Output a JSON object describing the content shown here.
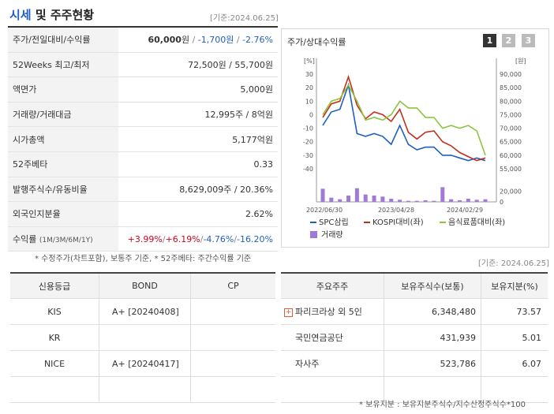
{
  "header": {
    "title_accent": "시세",
    "title_rest": " 및 주주현황",
    "date": "[기준:2024.06.25]"
  },
  "info_rows": [
    {
      "label": "주가/전일대비/수익률",
      "price": "60,000",
      "won": "원",
      "sep1": " / ",
      "change": "-1,700원",
      "sep2": " / ",
      "rate": "-2.76%"
    },
    {
      "label": "52Weeks 최고/최저",
      "value": "72,500원 / 55,700원"
    },
    {
      "label": "액면가",
      "value": "5,000원"
    },
    {
      "label": "거래량/거래대금",
      "value": "12,995주 / 8억원"
    },
    {
      "label": "시가총액",
      "value": "5,177억원"
    },
    {
      "label": "52주베타",
      "value": "0.33"
    },
    {
      "label": "발행주식수/유동비율",
      "value": "8,629,009주 / 20.36%"
    },
    {
      "label": "외국인지분율",
      "value": "2.62%"
    },
    {
      "label": "수익률",
      "label_small": "(1M/3M/6M/1Y)",
      "r1": "+3.99%",
      "r2": "+6.19%",
      "r3": "-4.76%",
      "r4": "-16.20%",
      "slash": "/"
    }
  ],
  "note1": "* 수정주가(차트포함), 보통주 기준, * 52주베타: 주간수익률 기준",
  "chart": {
    "title": "주가/상대수익률",
    "pages": [
      "1",
      "2",
      "3"
    ],
    "left_unit": "[%]",
    "right_unit": "[원]",
    "left_ticks": [
      "30",
      "20",
      "10",
      "0",
      "-10",
      "-20",
      "-30",
      "-40"
    ],
    "right_ticks": [
      "90,000",
      "85,000",
      "80,000",
      "75,000",
      "70,000",
      "65,000",
      "60,000",
      "55,000"
    ],
    "vol_ticks": [
      "20,000",
      "0"
    ],
    "x_ticks": [
      "2022/06/30",
      "2023/04/28",
      "2024/02/29"
    ],
    "legend": {
      "s1": "SPC삼립",
      "s2": "KOSPI대비(좌)",
      "s3": "음식료품대비(좌)",
      "vol": "거래량"
    },
    "colors": {
      "s1": "#1f5fbf",
      "s2": "#c0301f",
      "s3": "#8cc63f",
      "vol": "#a07ad6"
    }
  },
  "chart_data": {
    "type": "line",
    "x_range": [
      "2022/06/30",
      "2024/06/25"
    ],
    "x_labels": [
      "2022/06/30",
      "2023/04/28",
      "2024/02/29"
    ],
    "left_axis": {
      "unit": "%",
      "range": [
        -40,
        30
      ]
    },
    "right_axis": {
      "unit": "원",
      "range": [
        55000,
        90000
      ]
    },
    "series": [
      {
        "name": "SPC삼립",
        "axis": "right",
        "values": [
          71000,
          76000,
          77000,
          86000,
          68000,
          67000,
          68000,
          67000,
          64000,
          71000,
          64000,
          62000,
          63000,
          63000,
          60000,
          60000,
          59000,
          58000,
          59000,
          58000
        ]
      },
      {
        "name": "KOSPI대비(좌)",
        "axis": "left",
        "values": [
          -2,
          8,
          10,
          28,
          7,
          -3,
          2,
          0,
          -5,
          4,
          -13,
          -18,
          -13,
          -12,
          -20,
          -23,
          -28,
          -31,
          -34,
          -32
        ]
      },
      {
        "name": "음식료품대비(좌)",
        "axis": "left",
        "values": [
          0,
          10,
          12,
          22,
          10,
          -4,
          -2,
          -4,
          0,
          10,
          5,
          5,
          -2,
          -2,
          -10,
          -8,
          -10,
          -8,
          -12,
          -30
        ]
      },
      {
        "name": "거래량",
        "axis": "volume",
        "values": [
          25000,
          8000,
          5000,
          12000,
          26000,
          14000,
          12000,
          10000,
          6000,
          4000,
          2000,
          2000,
          3000,
          2000,
          28000,
          5000,
          3000,
          6000,
          4000,
          5000
        ]
      }
    ],
    "volume_range": [
      0,
      30000
    ]
  },
  "date2": "[기준: 2024.06.25]",
  "credit": {
    "headers": [
      "신용등급",
      "BOND",
      "CP"
    ],
    "rows": [
      {
        "agency": "KIS",
        "bond": "A+  [20240408]",
        "cp": ""
      },
      {
        "agency": "KR",
        "bond": "",
        "cp": ""
      },
      {
        "agency": "NICE",
        "bond": "A+  [20240417]",
        "cp": ""
      },
      {
        "agency": "",
        "bond": "",
        "cp": ""
      }
    ]
  },
  "holders": {
    "headers": [
      "주요주주",
      "보유주식수(보통)",
      "보유지분(%)"
    ],
    "rows": [
      {
        "name": "파리크라상 외 5인",
        "shares": "6,348,480",
        "pct": "73.57",
        "expand": "+"
      },
      {
        "name": "국민연금공단",
        "shares": "431,939",
        "pct": "5.01"
      },
      {
        "name": "자사주",
        "shares": "523,786",
        "pct": "6.07"
      },
      {
        "name": "",
        "shares": "",
        "pct": ""
      }
    ]
  },
  "note2": "* 보유지분 : 보유지분주식수/지수산정주식수*100"
}
